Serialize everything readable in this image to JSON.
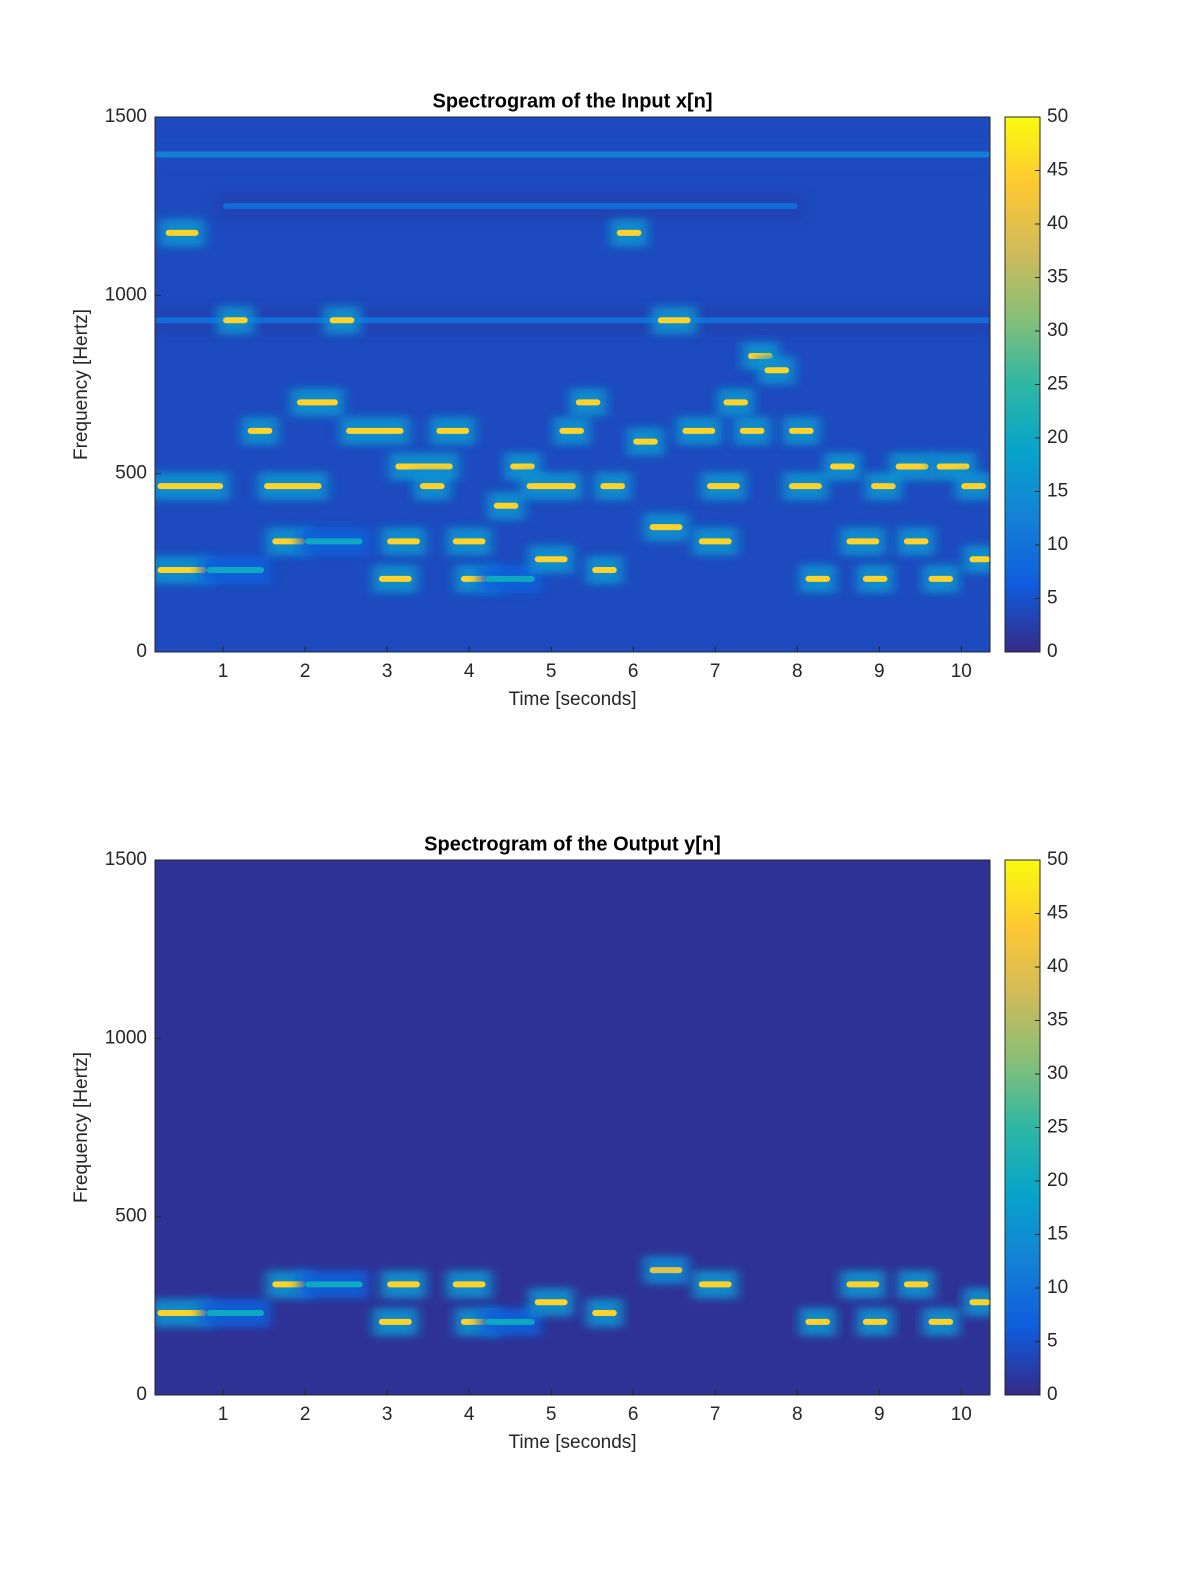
{
  "chart_data": [
    {
      "type": "spectrogram",
      "title": "Spectrogram of the Input x[n]",
      "xlabel": "Time [seconds]",
      "ylabel": "Frequency [Hertz]",
      "xlim": [
        0.17,
        10.35
      ],
      "ylim": [
        0,
        1500
      ],
      "xticks": [
        1,
        2,
        3,
        4,
        5,
        6,
        7,
        8,
        9,
        10
      ],
      "yticks": [
        0,
        500,
        1000,
        1500
      ],
      "clim": [
        0,
        50
      ],
      "cticks": [
        0,
        5,
        10,
        15,
        20,
        25,
        30,
        35,
        40,
        45,
        50
      ],
      "colorscale": [
        "#352a87",
        "#0f5cdd",
        "#1481d6",
        "#06a4ca",
        "#2eb7a4",
        "#87bf77",
        "#d1bb59",
        "#fec832",
        "#f9fb0e"
      ],
      "background": 4,
      "tones": [
        {
          "t0": 0.17,
          "t1": 10.35,
          "f": 1395,
          "level": 12
        },
        {
          "t0": 1.0,
          "t1": 8.0,
          "f": 1250,
          "level": 9
        },
        {
          "t0": 0.17,
          "t1": 10.35,
          "f": 930,
          "level": 9
        },
        {
          "t0": 0.2,
          "t1": 0.8,
          "f": 230,
          "level": 45
        },
        {
          "t0": 0.8,
          "t1": 1.5,
          "f": 230,
          "level": 20
        },
        {
          "t0": 0.2,
          "t1": 1.0,
          "f": 465,
          "level": 45
        },
        {
          "t0": 1.5,
          "t1": 2.2,
          "f": 465,
          "level": 45
        },
        {
          "t0": 1.0,
          "t1": 1.3,
          "f": 930,
          "level": 45
        },
        {
          "t0": 2.3,
          "t1": 2.6,
          "f": 930,
          "level": 45
        },
        {
          "t0": 0.3,
          "t1": 0.7,
          "f": 1175,
          "level": 45
        },
        {
          "t0": 1.3,
          "t1": 1.6,
          "f": 620,
          "level": 45
        },
        {
          "t0": 1.6,
          "t1": 2.0,
          "f": 310,
          "level": 45
        },
        {
          "t0": 2.0,
          "t1": 2.7,
          "f": 310,
          "level": 20
        },
        {
          "t0": 1.9,
          "t1": 2.4,
          "f": 700,
          "level": 45
        },
        {
          "t0": 2.5,
          "t1": 3.2,
          "f": 620,
          "level": 45
        },
        {
          "t0": 2.9,
          "t1": 3.3,
          "f": 205,
          "level": 45
        },
        {
          "t0": 3.0,
          "t1": 3.4,
          "f": 310,
          "level": 45
        },
        {
          "t0": 3.1,
          "t1": 3.8,
          "f": 520,
          "level": 45
        },
        {
          "t0": 3.4,
          "t1": 3.7,
          "f": 465,
          "level": 45
        },
        {
          "t0": 3.6,
          "t1": 4.0,
          "f": 620,
          "level": 45
        },
        {
          "t0": 3.8,
          "t1": 4.2,
          "f": 310,
          "level": 45
        },
        {
          "t0": 3.9,
          "t1": 4.3,
          "f": 205,
          "level": 45
        },
        {
          "t0": 4.2,
          "t1": 4.8,
          "f": 205,
          "level": 20
        },
        {
          "t0": 4.3,
          "t1": 4.6,
          "f": 410,
          "level": 45
        },
        {
          "t0": 4.5,
          "t1": 4.8,
          "f": 520,
          "level": 45
        },
        {
          "t0": 4.7,
          "t1": 5.3,
          "f": 465,
          "level": 45
        },
        {
          "t0": 4.8,
          "t1": 5.2,
          "f": 260,
          "level": 45
        },
        {
          "t0": 5.1,
          "t1": 5.4,
          "f": 620,
          "level": 45
        },
        {
          "t0": 5.3,
          "t1": 5.6,
          "f": 700,
          "level": 45
        },
        {
          "t0": 5.5,
          "t1": 5.8,
          "f": 230,
          "level": 45
        },
        {
          "t0": 5.6,
          "t1": 5.9,
          "f": 465,
          "level": 45
        },
        {
          "t0": 5.8,
          "t1": 6.1,
          "f": 1175,
          "level": 45
        },
        {
          "t0": 6.0,
          "t1": 6.3,
          "f": 590,
          "level": 45
        },
        {
          "t0": 6.2,
          "t1": 6.6,
          "f": 350,
          "level": 45
        },
        {
          "t0": 6.3,
          "t1": 6.7,
          "f": 930,
          "level": 45
        },
        {
          "t0": 6.6,
          "t1": 7.0,
          "f": 620,
          "level": 45
        },
        {
          "t0": 6.8,
          "t1": 7.2,
          "f": 310,
          "level": 45
        },
        {
          "t0": 6.9,
          "t1": 7.3,
          "f": 465,
          "level": 45
        },
        {
          "t0": 7.1,
          "t1": 7.4,
          "f": 700,
          "level": 45
        },
        {
          "t0": 7.3,
          "t1": 7.6,
          "f": 620,
          "level": 45
        },
        {
          "t0": 7.4,
          "t1": 7.7,
          "f": 830,
          "level": 45
        },
        {
          "t0": 7.6,
          "t1": 7.9,
          "f": 790,
          "level": 45
        },
        {
          "t0": 7.9,
          "t1": 8.2,
          "f": 620,
          "level": 45
        },
        {
          "t0": 7.9,
          "t1": 8.3,
          "f": 465,
          "level": 45
        },
        {
          "t0": 8.1,
          "t1": 8.4,
          "f": 205,
          "level": 45
        },
        {
          "t0": 8.4,
          "t1": 8.7,
          "f": 520,
          "level": 45
        },
        {
          "t0": 8.6,
          "t1": 9.0,
          "f": 310,
          "level": 45
        },
        {
          "t0": 8.8,
          "t1": 9.1,
          "f": 205,
          "level": 45
        },
        {
          "t0": 8.9,
          "t1": 9.2,
          "f": 465,
          "level": 45
        },
        {
          "t0": 9.2,
          "t1": 9.6,
          "f": 520,
          "level": 45
        },
        {
          "t0": 9.3,
          "t1": 9.6,
          "f": 310,
          "level": 45
        },
        {
          "t0": 9.6,
          "t1": 9.9,
          "f": 205,
          "level": 45
        },
        {
          "t0": 9.7,
          "t1": 10.1,
          "f": 520,
          "level": 45
        },
        {
          "t0": 10.0,
          "t1": 10.3,
          "f": 465,
          "level": 45
        },
        {
          "t0": 10.1,
          "t1": 10.35,
          "f": 260,
          "level": 45
        }
      ]
    },
    {
      "type": "spectrogram",
      "title": "Spectrogram of the Output y[n]",
      "xlabel": "Time [seconds]",
      "ylabel": "Frequency [Hertz]",
      "xlim": [
        0.17,
        10.35
      ],
      "ylim": [
        0,
        1500
      ],
      "xticks": [
        1,
        2,
        3,
        4,
        5,
        6,
        7,
        8,
        9,
        10
      ],
      "yticks": [
        0,
        500,
        1000,
        1500
      ],
      "clim": [
        0,
        50
      ],
      "cticks": [
        0,
        5,
        10,
        15,
        20,
        25,
        30,
        35,
        40,
        45,
        50
      ],
      "colorscale": [
        "#352a87",
        "#0f5cdd",
        "#1481d6",
        "#06a4ca",
        "#2eb7a4",
        "#87bf77",
        "#d1bb59",
        "#fec832",
        "#f9fb0e"
      ],
      "background": 1,
      "tones": [
        {
          "t0": 0.2,
          "t1": 0.8,
          "f": 230,
          "level": 45
        },
        {
          "t0": 0.8,
          "t1": 1.5,
          "f": 230,
          "level": 20
        },
        {
          "t0": 1.6,
          "t1": 2.0,
          "f": 310,
          "level": 45
        },
        {
          "t0": 2.0,
          "t1": 2.7,
          "f": 310,
          "level": 20
        },
        {
          "t0": 2.9,
          "t1": 3.3,
          "f": 205,
          "level": 45
        },
        {
          "t0": 3.0,
          "t1": 3.4,
          "f": 310,
          "level": 45
        },
        {
          "t0": 3.8,
          "t1": 4.2,
          "f": 310,
          "level": 45
        },
        {
          "t0": 3.9,
          "t1": 4.3,
          "f": 205,
          "level": 45
        },
        {
          "t0": 4.2,
          "t1": 4.8,
          "f": 205,
          "level": 20
        },
        {
          "t0": 4.8,
          "t1": 5.2,
          "f": 260,
          "level": 45
        },
        {
          "t0": 5.5,
          "t1": 5.8,
          "f": 230,
          "level": 45
        },
        {
          "t0": 6.2,
          "t1": 6.6,
          "f": 350,
          "level": 40
        },
        {
          "t0": 6.8,
          "t1": 7.2,
          "f": 310,
          "level": 45
        },
        {
          "t0": 8.1,
          "t1": 8.4,
          "f": 205,
          "level": 45
        },
        {
          "t0": 8.6,
          "t1": 9.0,
          "f": 310,
          "level": 45
        },
        {
          "t0": 8.8,
          "t1": 9.1,
          "f": 205,
          "level": 45
        },
        {
          "t0": 9.3,
          "t1": 9.6,
          "f": 310,
          "level": 45
        },
        {
          "t0": 9.6,
          "t1": 9.9,
          "f": 205,
          "level": 45
        },
        {
          "t0": 10.1,
          "t1": 10.35,
          "f": 260,
          "level": 45
        }
      ]
    }
  ]
}
